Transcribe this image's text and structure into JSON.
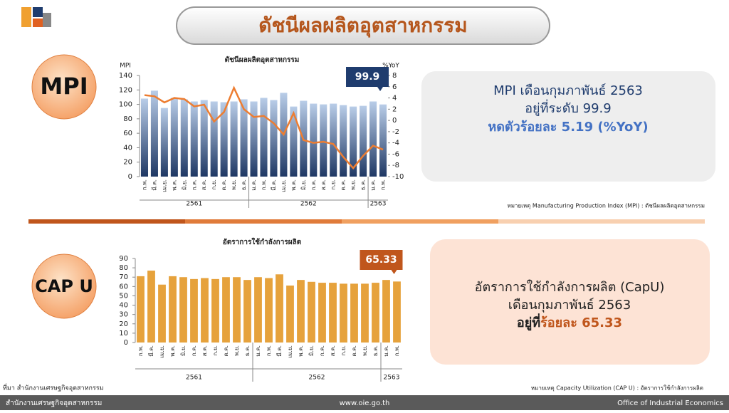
{
  "header": {
    "title": "ดัชนีผลผลิตอุตสาหกรรม"
  },
  "chart_data": [
    {
      "type": "bar",
      "title": "ดัชนีผลผลิตอุตสาหกรรม",
      "ylabel": "MPI",
      "y2label": "%YoY",
      "categories": [
        "ก.พ.",
        "มี.ค.",
        "เม.ย.",
        "พ.ค.",
        "มิ.ย.",
        "ก.ค.",
        "ส.ค.",
        "ก.ย.",
        "ต.ค.",
        "พ.ย.",
        "ธ.ค.",
        "ม.ค.",
        "ก.พ.",
        "มี.ค.",
        "เม.ย.",
        "พ.ค.",
        "มิ.ย.",
        "ก.ค.",
        "ส.ค.",
        "ก.ย.",
        "ต.ค.",
        "พ.ย.",
        "ธ.ค.",
        "ม.ค.",
        "ก.พ."
      ],
      "groups": [
        "2561",
        "2562",
        "2563"
      ],
      "series": [
        {
          "color": "#2f5597",
          "values": [
            108,
            119,
            95,
            109,
            107,
            104,
            106,
            104,
            103,
            104,
            107,
            104,
            109,
            106,
            116,
            97,
            105,
            101,
            100,
            101,
            99,
            97,
            98,
            104,
            99.9
          ]
        },
        {
          "type": "line",
          "axis": "y2",
          "color": "#ed7d31",
          "values": [
            4.5,
            4.3,
            3.2,
            4.0,
            3.8,
            2.5,
            2.8,
            -0.2,
            1.5,
            5.8,
            2.0,
            0.6,
            0.8,
            -0.5,
            -2.5,
            1.3,
            -3.5,
            -4.0,
            -3.8,
            -4.2,
            -6.5,
            -8.5,
            -6.3,
            -4.5,
            -5.19
          ]
        }
      ],
      "ylim": [
        0,
        140
      ],
      "yticks": [
        0,
        20,
        40,
        60,
        80,
        100,
        120,
        140
      ],
      "y2lim": [
        -10,
        8
      ],
      "y2ticks": [
        -10,
        -8,
        -6,
        -4,
        -2,
        0,
        2,
        4,
        6,
        8
      ]
    },
    {
      "type": "bar",
      "title": "อัตราการใช้กำลังการผลิต",
      "categories": [
        "ก.พ.",
        "มี.ค.",
        "เม.ย.",
        "พ.ค.",
        "มิ.ย.",
        "ก.ค.",
        "ส.ค.",
        "ก.ย.",
        "ต.ค.",
        "พ.ย.",
        "ธ.ค.",
        "ม.ค.",
        "ก.พ.",
        "มี.ค.",
        "เม.ย.",
        "พ.ค.",
        "มิ.ย.",
        "ก.ค.",
        "ส.ค.",
        "ก.ย.",
        "ต.ค.",
        "พ.ย.",
        "ธ.ค.",
        "ม.ค.",
        "ก.พ."
      ],
      "groups": [
        "2561",
        "2562",
        "2563"
      ],
      "series": [
        {
          "color": "#e6a23c",
          "values": [
            71,
            77,
            62,
            71,
            70,
            68,
            69,
            68,
            70,
            70,
            67,
            70,
            69,
            73,
            61,
            67,
            65,
            64,
            64,
            63,
            63,
            63,
            64,
            67,
            65.33
          ]
        }
      ],
      "ylim": [
        0,
        90
      ],
      "yticks": [
        0,
        10,
        20,
        30,
        40,
        50,
        60,
        70,
        80,
        90
      ]
    }
  ],
  "mpi": {
    "badge": "MPI",
    "lines": [
      "MPI เดือนกุมภาพันธ์ 2563",
      "อยู่ที่ระดับ 99.9",
      "หดตัวร้อยละ 5.19  (%YoY)"
    ],
    "note": "หมายเหตุ Manufacturing Production Index (MPI) : ดัชนีผลผลิตอุตสาหกรรม"
  },
  "capu": {
    "badge": "CAP U",
    "lines": [
      "อัตราการใช้กำลังการผลิต (CapU)",
      "เดือนกุมภาพันธ์ 2563"
    ],
    "line3a": "อยู่ที่",
    "line3b": "ร้อยละ 65.33",
    "note": "หมายเหตุ Capacity Utilization (CAP U) : อัตราการใช้กำลังการผลิต"
  },
  "source": "ที่มา  สำนักงานเศรษฐกิจอุตสาหกรรม",
  "footer": {
    "left": "สำนักงานเศรษฐกิจอุตสาหกรรม",
    "center": "www.oie.go.th",
    "right": "Office of Industrial Economics"
  }
}
